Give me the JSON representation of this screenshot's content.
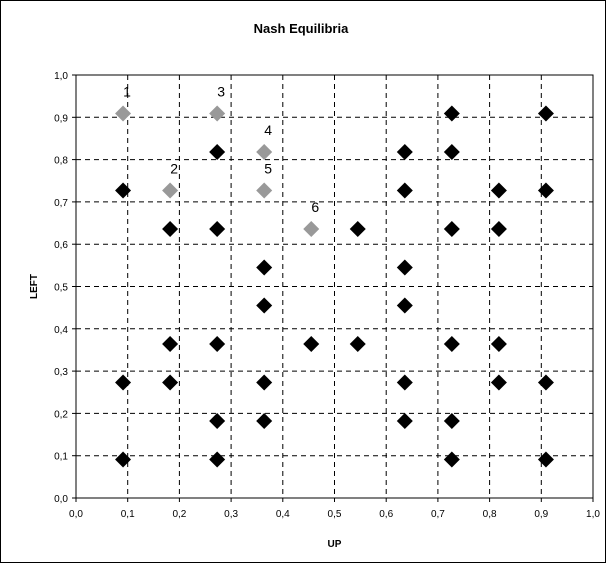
{
  "chart_data": {
    "type": "scatter",
    "title": "Nash Equilibria",
    "xlabel": "UP",
    "ylabel": "LEFT",
    "xlim": [
      0,
      1
    ],
    "ylim": [
      0,
      1
    ],
    "x_ticks": [
      "0,0",
      "0,1",
      "0,2",
      "0,3",
      "0,4",
      "0,5",
      "0,6",
      "0,7",
      "0,8",
      "0,9",
      "1,0"
    ],
    "y_ticks": [
      "0,0",
      "0,1",
      "0,2",
      "0,3",
      "0,4",
      "0,5",
      "0,6",
      "0,7",
      "0,8",
      "0,9",
      "1,0"
    ],
    "grid": true,
    "legend": "none",
    "colors": {
      "black_marker": "#000000",
      "grey_marker": "#999999",
      "grid": "#000000"
    },
    "series": [
      {
        "color": "#000000",
        "points": [
          [
            0.909,
            0.091
          ],
          [
            0.727,
            0.091
          ],
          [
            0.273,
            0.091
          ],
          [
            0.091,
            0.091
          ],
          [
            0.727,
            0.182
          ],
          [
            0.636,
            0.182
          ],
          [
            0.364,
            0.182
          ],
          [
            0.273,
            0.182
          ],
          [
            0.909,
            0.273
          ],
          [
            0.818,
            0.273
          ],
          [
            0.636,
            0.273
          ],
          [
            0.364,
            0.273
          ],
          [
            0.182,
            0.273
          ],
          [
            0.091,
            0.273
          ],
          [
            0.818,
            0.364
          ],
          [
            0.727,
            0.364
          ],
          [
            0.545,
            0.364
          ],
          [
            0.455,
            0.364
          ],
          [
            0.273,
            0.364
          ],
          [
            0.182,
            0.364
          ],
          [
            0.636,
            0.455
          ],
          [
            0.364,
            0.455
          ],
          [
            0.636,
            0.545
          ],
          [
            0.364,
            0.545
          ],
          [
            0.818,
            0.636
          ],
          [
            0.727,
            0.636
          ],
          [
            0.545,
            0.636
          ],
          [
            0.273,
            0.636
          ],
          [
            0.182,
            0.636
          ],
          [
            0.909,
            0.727
          ],
          [
            0.818,
            0.727
          ],
          [
            0.636,
            0.727
          ],
          [
            0.091,
            0.727
          ],
          [
            0.727,
            0.818
          ],
          [
            0.636,
            0.818
          ],
          [
            0.273,
            0.818
          ],
          [
            0.909,
            0.909
          ],
          [
            0.727,
            0.909
          ]
        ]
      },
      {
        "color": "#999999",
        "points": [
          [
            0.091,
            0.909
          ],
          [
            0.182,
            0.727
          ],
          [
            0.273,
            0.909
          ],
          [
            0.364,
            0.818
          ],
          [
            0.364,
            0.727
          ],
          [
            0.455,
            0.636
          ]
        ],
        "labels": [
          "1",
          "2",
          "3",
          "4",
          "5",
          "6"
        ]
      }
    ]
  }
}
